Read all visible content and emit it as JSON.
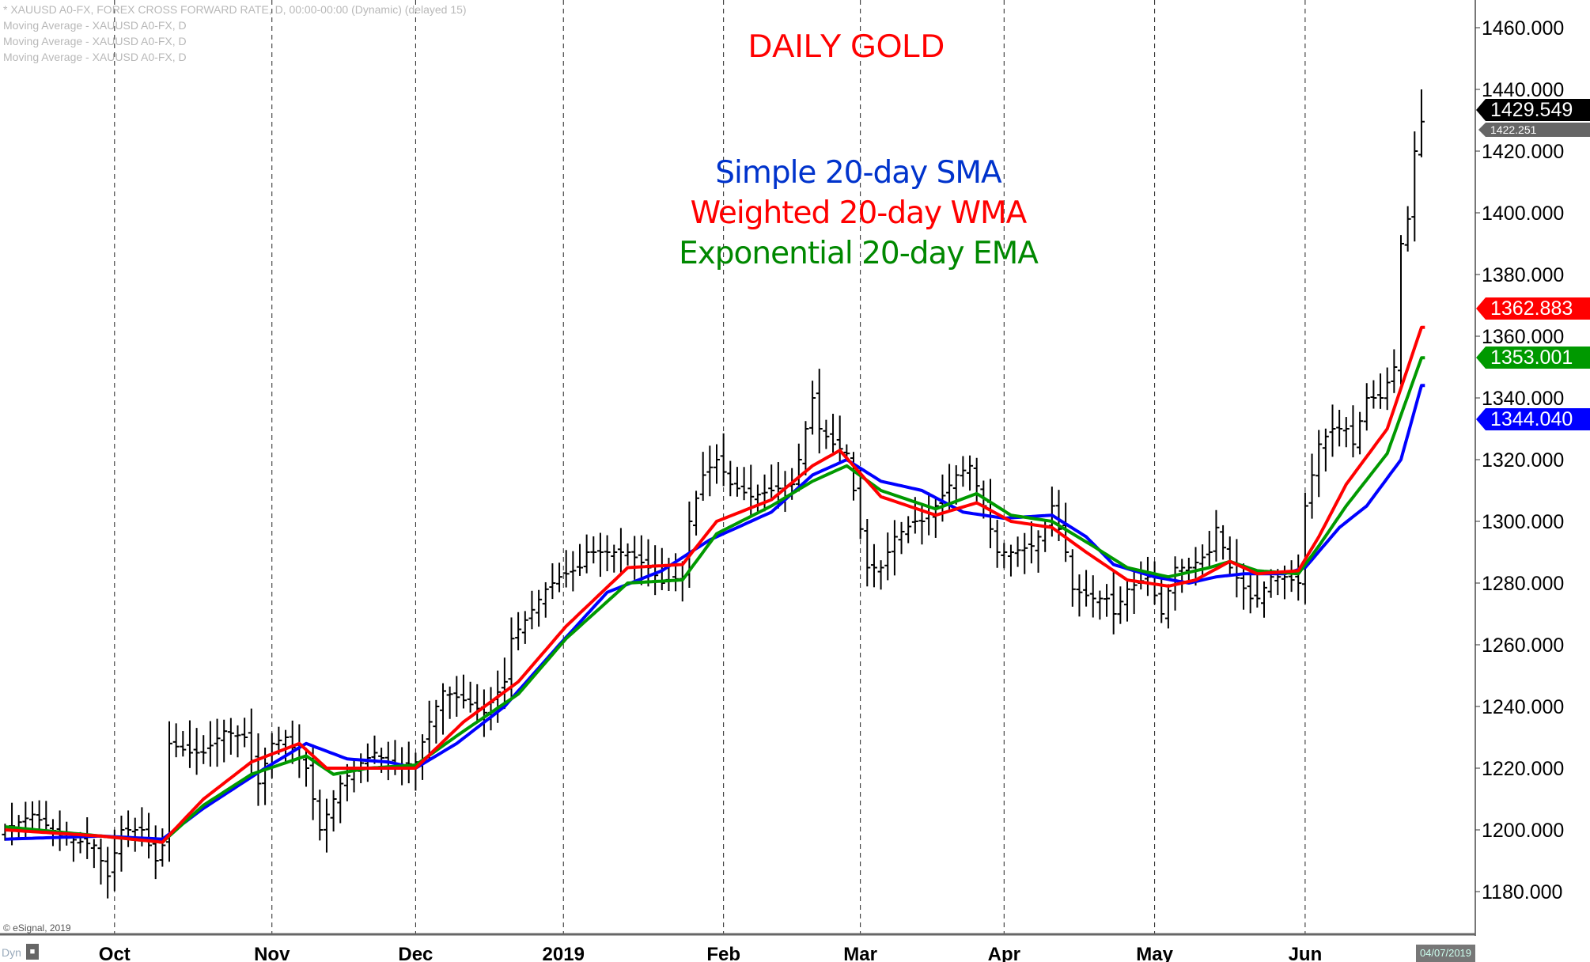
{
  "header": {
    "symbol_line": "* XAUUSD A0-FX, FOREX CROSS FORWARD RATE, D, 00:00-00:00 (Dynamic) (delayed 15)",
    "ma_lines": [
      "Moving Average - XAUUSD A0-FX, D",
      "Moving Average - XAUUSD A0-FX, D",
      "Moving Average - XAUUSD A0-FX, D"
    ]
  },
  "footer": {
    "copyright": "© eSignal, 2019",
    "dyn": "Dyn",
    "lock": "🔒",
    "date": "04/07/2019"
  },
  "colors": {
    "sma": "#0000ff",
    "wma": "#ff0000",
    "ema": "#009900",
    "price": "#000000",
    "title": "#ff0000"
  },
  "chart_data": {
    "type": "ohlc-bar",
    "title": "DAILY GOLD",
    "legend": [
      {
        "label": "Simple 20-day SMA",
        "color": "#0033cc"
      },
      {
        "label": "Weighted 20-day WMA",
        "color": "#ff0000"
      },
      {
        "label": "Exponential 20-day EMA",
        "color": "#008800"
      }
    ],
    "ylim": [
      1170,
      1465
    ],
    "y_ticks": [
      "1180.000",
      "1200.000",
      "1220.000",
      "1240.000",
      "1260.000",
      "1280.000",
      "1300.000",
      "1320.000",
      "1340.000",
      "1360.000",
      "1380.000",
      "1400.000",
      "1420.000",
      "1440.000",
      "1460.000"
    ],
    "x_months": [
      {
        "label": "Oct",
        "day": 16
      },
      {
        "label": "Nov",
        "day": 39
      },
      {
        "label": "Dec",
        "day": 60
      },
      {
        "label": "2019",
        "day": 81.6
      },
      {
        "label": "Feb",
        "day": 105
      },
      {
        "label": "Mar",
        "day": 125
      },
      {
        "label": "Apr",
        "day": 146
      },
      {
        "label": "May",
        "day": 168
      },
      {
        "label": "Jun",
        "day": 190
      }
    ],
    "n_days": 208,
    "close_keypoints": [
      [
        0,
        1200
      ],
      [
        4,
        1205
      ],
      [
        8,
        1198
      ],
      [
        13,
        1195
      ],
      [
        15,
        1185
      ],
      [
        17,
        1200
      ],
      [
        20,
        1200
      ],
      [
        22,
        1190
      ],
      [
        23,
        1195
      ],
      [
        24,
        1228
      ],
      [
        27,
        1225
      ],
      [
        29,
        1225
      ],
      [
        32,
        1232
      ],
      [
        35,
        1230
      ],
      [
        37,
        1215
      ],
      [
        39,
        1228
      ],
      [
        41,
        1230
      ],
      [
        44,
        1220
      ],
      [
        46,
        1200
      ],
      [
        47,
        1205
      ],
      [
        49,
        1215
      ],
      [
        51,
        1220
      ],
      [
        54,
        1225
      ],
      [
        57,
        1220
      ],
      [
        60,
        1222
      ],
      [
        62,
        1235
      ],
      [
        64,
        1245
      ],
      [
        67,
        1242
      ],
      [
        70,
        1238
      ],
      [
        73,
        1248
      ],
      [
        74,
        1262
      ],
      [
        76,
        1268
      ],
      [
        79,
        1278
      ],
      [
        81,
        1282
      ],
      [
        84,
        1285
      ],
      [
        85,
        1290
      ],
      [
        88,
        1290
      ],
      [
        91,
        1290
      ],
      [
        94,
        1285
      ],
      [
        96,
        1280
      ],
      [
        99,
        1282
      ],
      [
        100,
        1300
      ],
      [
        102,
        1315
      ],
      [
        104,
        1320
      ],
      [
        106,
        1312
      ],
      [
        109,
        1308
      ],
      [
        112,
        1310
      ],
      [
        115,
        1312
      ],
      [
        116,
        1320
      ],
      [
        118,
        1340
      ],
      [
        119,
        1330
      ],
      [
        121,
        1325
      ],
      [
        123,
        1322
      ],
      [
        124,
        1310
      ],
      [
        126,
        1285
      ],
      [
        128,
        1285
      ],
      [
        130,
        1295
      ],
      [
        133,
        1300
      ],
      [
        134,
        1300
      ],
      [
        136,
        1305
      ],
      [
        139,
        1315
      ],
      [
        141,
        1318
      ],
      [
        143,
        1305
      ],
      [
        145,
        1290
      ],
      [
        147,
        1290
      ],
      [
        150,
        1292
      ],
      [
        152,
        1298
      ],
      [
        153,
        1305
      ],
      [
        155,
        1290
      ],
      [
        156,
        1278
      ],
      [
        159,
        1275
      ],
      [
        161,
        1275
      ],
      [
        162,
        1270
      ],
      [
        164,
        1278
      ],
      [
        167,
        1282
      ],
      [
        169,
        1270
      ],
      [
        171,
        1285
      ],
      [
        173,
        1285
      ],
      [
        176,
        1290
      ],
      [
        177,
        1298
      ],
      [
        179,
        1285
      ],
      [
        182,
        1275
      ],
      [
        183,
        1275
      ],
      [
        185,
        1282
      ],
      [
        187,
        1282
      ],
      [
        189,
        1280
      ],
      [
        190,
        1305
      ],
      [
        192,
        1325
      ],
      [
        194,
        1330
      ],
      [
        196,
        1330
      ],
      [
        197,
        1325
      ],
      [
        199,
        1340
      ],
      [
        201,
        1340
      ],
      [
        203,
        1350
      ],
      [
        204,
        1390
      ],
      [
        205,
        1398
      ],
      [
        206,
        1420
      ],
      [
        207,
        1429.549
      ]
    ],
    "sma_keypoints": [
      [
        0,
        1197
      ],
      [
        14,
        1198
      ],
      [
        23,
        1197
      ],
      [
        29,
        1207
      ],
      [
        38,
        1220
      ],
      [
        44,
        1228
      ],
      [
        50,
        1223
      ],
      [
        56,
        1222
      ],
      [
        60,
        1220
      ],
      [
        66,
        1228
      ],
      [
        73,
        1240
      ],
      [
        81,
        1260
      ],
      [
        88,
        1277
      ],
      [
        96,
        1284
      ],
      [
        103,
        1294
      ],
      [
        112,
        1303
      ],
      [
        118,
        1315
      ],
      [
        123,
        1320
      ],
      [
        128,
        1313
      ],
      [
        134,
        1310
      ],
      [
        140,
        1303
      ],
      [
        146,
        1301
      ],
      [
        153,
        1302
      ],
      [
        158,
        1295
      ],
      [
        162,
        1286
      ],
      [
        168,
        1282
      ],
      [
        173,
        1280
      ],
      [
        177,
        1282
      ],
      [
        181,
        1283
      ],
      [
        187,
        1283
      ],
      [
        190,
        1285
      ],
      [
        195,
        1298
      ],
      [
        199,
        1305
      ],
      [
        204,
        1320
      ],
      [
        207,
        1344.04
      ]
    ],
    "wma_keypoints": [
      [
        0,
        1200
      ],
      [
        14,
        1198
      ],
      [
        23,
        1196
      ],
      [
        29,
        1210
      ],
      [
        36,
        1222
      ],
      [
        43,
        1228
      ],
      [
        47,
        1220
      ],
      [
        51,
        1220
      ],
      [
        60,
        1220
      ],
      [
        67,
        1235
      ],
      [
        75,
        1248
      ],
      [
        82,
        1266
      ],
      [
        91,
        1285
      ],
      [
        99,
        1286
      ],
      [
        104,
        1300
      ],
      [
        112,
        1307
      ],
      [
        118,
        1318
      ],
      [
        122,
        1323
      ],
      [
        128,
        1308
      ],
      [
        136,
        1302
      ],
      [
        142,
        1306
      ],
      [
        147,
        1300
      ],
      [
        153,
        1298
      ],
      [
        158,
        1290
      ],
      [
        164,
        1281
      ],
      [
        170,
        1279
      ],
      [
        174,
        1281
      ],
      [
        179,
        1287
      ],
      [
        183,
        1283
      ],
      [
        189,
        1284
      ],
      [
        192,
        1295
      ],
      [
        196,
        1312
      ],
      [
        202,
        1330
      ],
      [
        207,
        1362.883
      ]
    ],
    "ema_keypoints": [
      [
        0,
        1201
      ],
      [
        14,
        1198
      ],
      [
        23,
        1196
      ],
      [
        29,
        1208
      ],
      [
        36,
        1218
      ],
      [
        44,
        1224
      ],
      [
        48,
        1218
      ],
      [
        53,
        1220
      ],
      [
        60,
        1221
      ],
      [
        67,
        1232
      ],
      [
        75,
        1244
      ],
      [
        82,
        1262
      ],
      [
        91,
        1280
      ],
      [
        99,
        1281
      ],
      [
        104,
        1296
      ],
      [
        112,
        1305
      ],
      [
        118,
        1313
      ],
      [
        123,
        1318
      ],
      [
        128,
        1310
      ],
      [
        136,
        1304
      ],
      [
        142,
        1309
      ],
      [
        147,
        1302
      ],
      [
        153,
        1300
      ],
      [
        159,
        1292
      ],
      [
        164,
        1285
      ],
      [
        170,
        1282
      ],
      [
        176,
        1285
      ],
      [
        179,
        1287
      ],
      [
        183,
        1284
      ],
      [
        189,
        1283
      ],
      [
        192,
        1292
      ],
      [
        196,
        1305
      ],
      [
        202,
        1322
      ],
      [
        207,
        1353.001
      ]
    ],
    "last_values": {
      "price": "1429.549",
      "prev": "1422.251",
      "wma": "1362.883",
      "ema": "1353.001",
      "sma": "1344.040"
    }
  }
}
